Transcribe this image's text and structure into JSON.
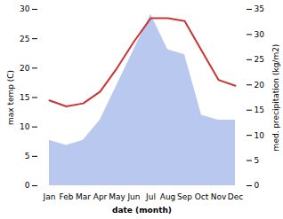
{
  "chart_data": {
    "type": "line",
    "xlabel": "date (month)",
    "ylabel": "max temp (C)",
    "y2label": "med. precipitation (kg/m2)",
    "categories": [
      "Jan",
      "Feb",
      "Mar",
      "Apr",
      "May",
      "Jun",
      "Jul",
      "Aug",
      "Sep",
      "Oct",
      "Nov",
      "Dec"
    ],
    "series": [
      {
        "type": "area",
        "axis": "y2",
        "color": "#b8c8ee",
        "values": [
          9.0,
          8.0,
          9.0,
          13.0,
          20.0,
          27.0,
          34.0,
          27.0,
          26.0,
          14.0,
          13.0,
          13.0
        ]
      },
      {
        "type": "line",
        "color": "#cc3333",
        "values": [
          14.5,
          13.5,
          14.0,
          16.0,
          20.0,
          24.5,
          28.5,
          28.5,
          28.0,
          23.0,
          18.0,
          17.0
        ]
      }
    ],
    "ylim": [
      0,
      30
    ],
    "yticks": [
      0,
      5,
      10,
      15,
      20,
      25,
      30
    ],
    "y2lim": [
      0,
      35
    ],
    "y2ticks": [
      0,
      5,
      10,
      15,
      20,
      25,
      30,
      35
    ],
    "grid": false
  }
}
